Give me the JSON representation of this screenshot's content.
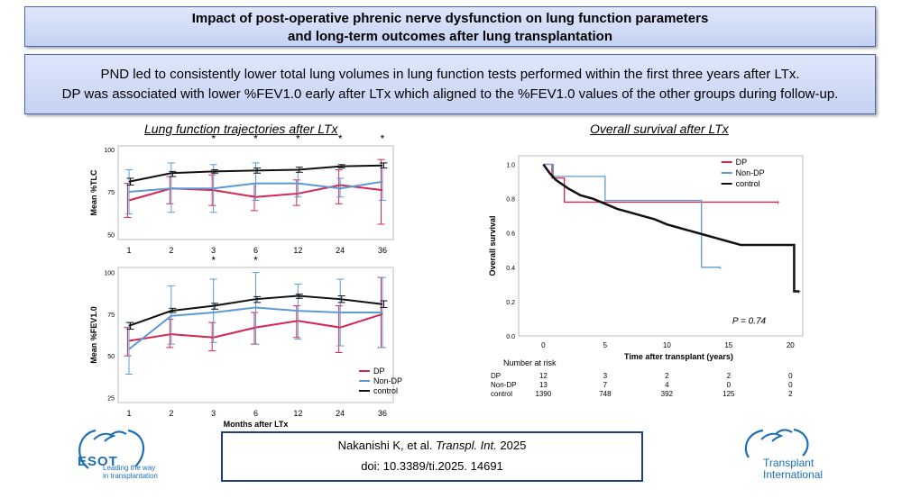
{
  "header": {
    "title_line1": "Impact of post-operative phrenic nerve dysfunction on lung function parameters",
    "title_line2": "and long-term outcomes after lung transplantation"
  },
  "summary": {
    "line1": "PND led to consistently lower total lung volumes in lung function tests performed within the first three years after LTx.",
    "line2": "DP was associated with lower %FEV1.0 early after LTx which aligned to the %FEV1.0 values of the other groups during follow-up."
  },
  "citation": {
    "authors": "Nakanishi K, et al.",
    "journal": "Transpl. Int.",
    "year": "2025",
    "doi": "doi: 10.3389/ti.2025. 14691"
  },
  "logos": {
    "esot_name": "ESOT",
    "esot_tagline1": "Leading the way",
    "esot_tagline2": "in transplantation",
    "ti_line1": "Transplant",
    "ti_line2": "International"
  },
  "colors": {
    "dp": "#d6254f",
    "nondp": "#5b9bd5",
    "control": "#111111",
    "banner_border": "#4a63b5",
    "citation_border": "#243b8c"
  },
  "chart_data": [
    {
      "type": "line",
      "panel_title": "Lung function trajectories after LTx",
      "title": "",
      "xlabel": "",
      "ylabel": "Mean %TLC",
      "categories": [
        "1",
        "2",
        "3",
        "6",
        "12",
        "24",
        "36"
      ],
      "ylim": [
        47,
        102
      ],
      "yticks": [
        50,
        75,
        100
      ],
      "significance": [
        "",
        "",
        "*",
        "*",
        "*",
        "*",
        "*"
      ],
      "series": [
        {
          "name": "DP",
          "color": "#d6254f",
          "values": [
            70,
            77,
            76,
            72,
            74,
            79,
            76
          ],
          "lower": [
            60,
            68,
            67,
            64,
            67,
            68,
            56
          ],
          "upper": [
            80,
            84,
            85,
            80,
            82,
            88,
            94
          ]
        },
        {
          "name": "Non-DP",
          "color": "#5b9bd5",
          "values": [
            75,
            77,
            77,
            80,
            80,
            77,
            81
          ],
          "lower": [
            62,
            63,
            63,
            70,
            72,
            72,
            70
          ],
          "upper": [
            88,
            92,
            91,
            92,
            88,
            83,
            92
          ]
        },
        {
          "name": "control",
          "color": "#111111",
          "values": [
            81,
            86,
            87,
            87.5,
            88,
            90,
            90.5
          ],
          "lower": [
            79,
            84,
            86,
            86,
            86.5,
            89,
            89
          ],
          "upper": [
            83,
            87,
            88,
            89,
            89.5,
            91,
            92
          ]
        }
      ]
    },
    {
      "type": "line",
      "title": "",
      "xlabel": "Months after LTx",
      "ylabel": "Mean %FEV1.0",
      "categories": [
        "1",
        "2",
        "3",
        "6",
        "12",
        "24",
        "36"
      ],
      "ylim": [
        22,
        103
      ],
      "yticks": [
        25,
        50,
        75,
        100
      ],
      "significance": [
        "",
        "",
        "*",
        "*",
        "",
        "",
        ""
      ],
      "legend": [
        "DP",
        "Non-DP",
        "control"
      ],
      "series": [
        {
          "name": "DP",
          "color": "#d6254f",
          "values": [
            59,
            63,
            61,
            67,
            71,
            67,
            75
          ],
          "lower": [
            50,
            55,
            53,
            57,
            61,
            52,
            55
          ],
          "upper": [
            67,
            72,
            70,
            76,
            80,
            80,
            97
          ]
        },
        {
          "name": "Non-DP",
          "color": "#5b9bd5",
          "values": [
            54,
            74,
            76,
            79,
            77,
            76,
            76
          ],
          "lower": [
            39,
            57,
            58,
            57,
            60,
            56,
            55
          ],
          "upper": [
            70,
            92,
            96,
            100,
            93,
            96,
            97
          ]
        },
        {
          "name": "control",
          "color": "#111111",
          "values": [
            68,
            77,
            80,
            84,
            86,
            84,
            81
          ],
          "lower": [
            66,
            76,
            78,
            82,
            84.5,
            82,
            79
          ],
          "upper": [
            70,
            78.5,
            81.5,
            85.5,
            87,
            86,
            83
          ]
        }
      ]
    },
    {
      "type": "line",
      "panel_title": "Overall survival after LTx",
      "title": "",
      "xlabel": "Time after transplant (years)",
      "ylabel": "Overall survival",
      "xlim": [
        -2,
        21
      ],
      "ylim": [
        0,
        1.05
      ],
      "xticks": [
        0,
        5,
        10,
        15,
        20
      ],
      "yticks": [
        0.0,
        0.2,
        0.4,
        0.6,
        0.8,
        1.0
      ],
      "annotation": "P = 0.74",
      "legend": [
        "DP",
        "Non-DP",
        "control"
      ],
      "series": [
        {
          "name": "DP",
          "color": "#d6254f",
          "steps": [
            [
              0,
              1.0
            ],
            [
              0.7,
              1.0
            ],
            [
              0.7,
              0.92
            ],
            [
              1.7,
              0.92
            ],
            [
              1.7,
              0.78
            ],
            [
              19,
              0.78
            ]
          ]
        },
        {
          "name": "Non-DP",
          "color": "#5b9bd5",
          "steps": [
            [
              0,
              1.0
            ],
            [
              0.8,
              1.0
            ],
            [
              0.8,
              0.93
            ],
            [
              5,
              0.93
            ],
            [
              5,
              0.79
            ],
            [
              12.8,
              0.79
            ],
            [
              12.8,
              0.4
            ],
            [
              14.3,
              0.4
            ]
          ]
        },
        {
          "name": "control",
          "color": "#111111",
          "points": [
            [
              0,
              1.0
            ],
            [
              0.5,
              0.95
            ],
            [
              1,
              0.91
            ],
            [
              2,
              0.86
            ],
            [
              3,
              0.82
            ],
            [
              4,
              0.8
            ],
            [
              5,
              0.77
            ],
            [
              6,
              0.74
            ],
            [
              7,
              0.72
            ],
            [
              8,
              0.7
            ],
            [
              9,
              0.68
            ],
            [
              10,
              0.65
            ],
            [
              11,
              0.63
            ],
            [
              12,
              0.61
            ],
            [
              13,
              0.59
            ],
            [
              14,
              0.57
            ],
            [
              15,
              0.55
            ],
            [
              16,
              0.53
            ],
            [
              17,
              0.53
            ],
            [
              18,
              0.53
            ],
            [
              19,
              0.53
            ],
            [
              20.3,
              0.53
            ],
            [
              20.3,
              0.26
            ],
            [
              20.7,
              0.26
            ]
          ]
        }
      ],
      "risk_table": {
        "title": "Number at risk",
        "times": [
          "0",
          "5",
          "10",
          "15",
          "20"
        ],
        "rows": [
          {
            "group": "DP",
            "values": [
              "12",
              "3",
              "2",
              "2",
              "0"
            ]
          },
          {
            "group": "Non-DP",
            "values": [
              "13",
              "7",
              "4",
              "0",
              "0"
            ]
          },
          {
            "group": "control",
            "values": [
              "1390",
              "748",
              "392",
              "125",
              "2"
            ]
          }
        ]
      }
    }
  ]
}
